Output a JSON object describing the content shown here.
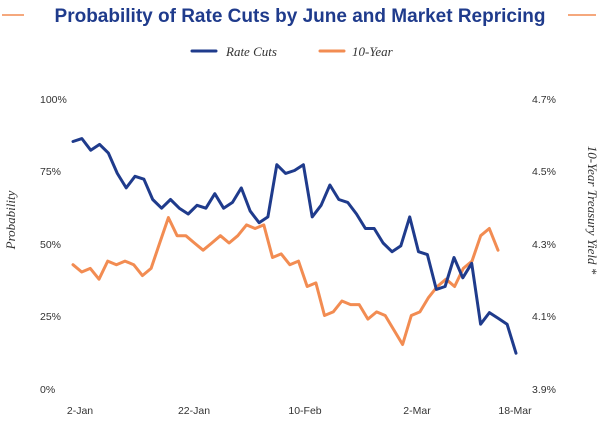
{
  "chart_data": {
    "type": "line",
    "title": "Probability of Rate Cuts by June and Market Repricing",
    "x_ticks": [
      "2-Jan",
      "22-Jan",
      "10-Feb",
      "2-Mar",
      "18-Mar"
    ],
    "y_left": {
      "label": "Probability",
      "ticks": [
        "100%",
        "75%",
        "50%",
        "25%",
        "0%"
      ],
      "range": [
        0,
        100
      ]
    },
    "y_right": {
      "label": "10-Year Treasury Yield *",
      "ticks": [
        "4.7%",
        "4.5%",
        "4.3%",
        "4.1%",
        "3.9%"
      ],
      "range": [
        3.9,
        4.7
      ]
    },
    "series": [
      {
        "name": "Rate Cuts",
        "color": "#1f3b8c",
        "axis": "left",
        "values": [
          85,
          86,
          82,
          84,
          81,
          74,
          69,
          73,
          72,
          65,
          62,
          65,
          62,
          60,
          63,
          62,
          67,
          62,
          64,
          69,
          61,
          57,
          59,
          77,
          74,
          75,
          77,
          59,
          63,
          70,
          65,
          64,
          60,
          55,
          55,
          50,
          47,
          49,
          59,
          47,
          46,
          34,
          35,
          45,
          38,
          43,
          22,
          26,
          24,
          22,
          12
        ]
      },
      {
        "name": "10-Year",
        "color": "#f28c52",
        "axis": "right",
        "values": [
          4.24,
          4.22,
          4.23,
          4.2,
          4.25,
          4.24,
          4.25,
          4.24,
          4.21,
          4.23,
          4.3,
          4.37,
          4.32,
          4.32,
          4.3,
          4.28,
          4.3,
          4.32,
          4.3,
          4.32,
          4.35,
          4.34,
          4.35,
          4.26,
          4.27,
          4.24,
          4.25,
          4.18,
          4.19,
          4.1,
          4.11,
          4.14,
          4.13,
          4.13,
          4.09,
          4.11,
          4.1,
          4.06,
          4.02,
          4.1,
          4.11,
          4.15,
          4.18,
          4.2,
          4.18,
          4.23,
          4.25,
          4.32,
          4.34,
          4.28
        ]
      }
    ]
  }
}
